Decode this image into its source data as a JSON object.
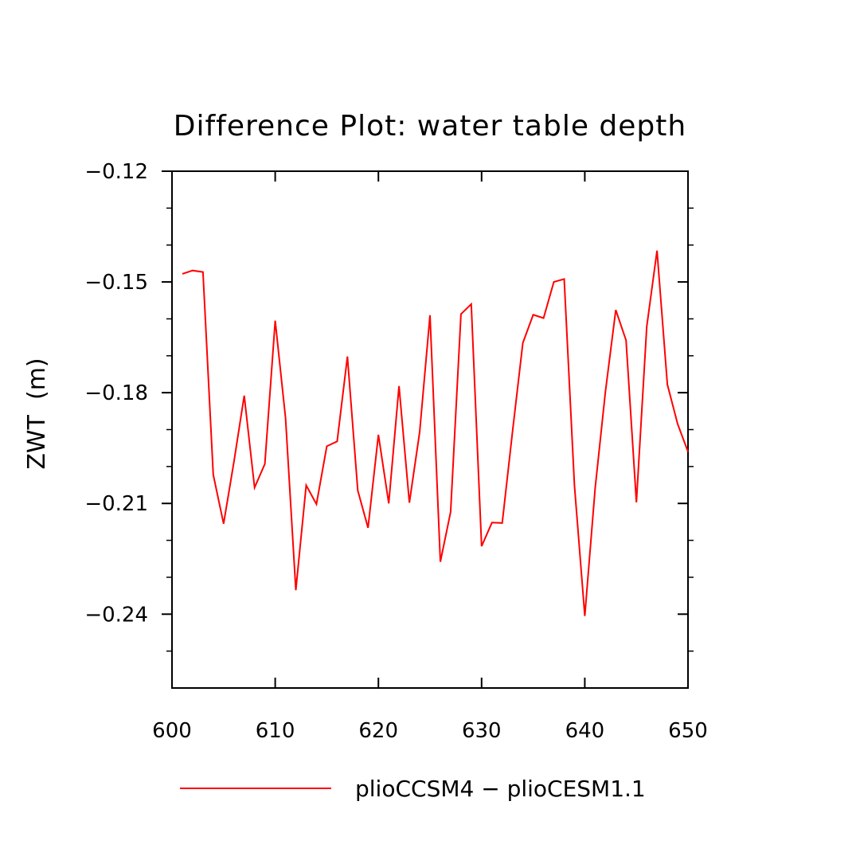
{
  "chart_data": {
    "type": "line",
    "title": "Difference Plot: water table depth",
    "xlabel": "",
    "ylabel": "ZWT  (m)",
    "xlim": [
      600,
      650
    ],
    "ylim": [
      -0.26,
      -0.12
    ],
    "xticks": [
      600,
      610,
      620,
      630,
      640,
      650
    ],
    "xtick_labels": [
      "600",
      "610",
      "620",
      "630",
      "640",
      "650"
    ],
    "yticks": [
      -0.12,
      -0.15,
      -0.18,
      -0.21,
      -0.24
    ],
    "ytick_labels": [
      "−0.12",
      "−0.15",
      "−0.18",
      "−0.21",
      "−0.24"
    ],
    "grid": false,
    "legend_position": "bottom",
    "series": [
      {
        "name": "plioCCSM4 − plioCESM1.1",
        "color": "#ff0000",
        "x": [
          601,
          602,
          603,
          604,
          605,
          606,
          607,
          608,
          609,
          610,
          611,
          612,
          613,
          614,
          615,
          616,
          617,
          618,
          619,
          620,
          621,
          622,
          623,
          624,
          625,
          626,
          627,
          628,
          629,
          630,
          631,
          632,
          633,
          634,
          635,
          636,
          637,
          638,
          639,
          640,
          641,
          642,
          643,
          644,
          645,
          646,
          647,
          648,
          649,
          650
        ],
        "y": [
          -0.1478,
          -0.1469,
          -0.1473,
          -0.2022,
          -0.2155,
          -0.1987,
          -0.1808,
          -0.2057,
          -0.1993,
          -0.1605,
          -0.1869,
          -0.2335,
          -0.2051,
          -0.2102,
          -0.1945,
          -0.1932,
          -0.1702,
          -0.2065,
          -0.2166,
          -0.1914,
          -0.21,
          -0.1782,
          -0.2098,
          -0.1907,
          -0.159,
          -0.2258,
          -0.2123,
          -0.1587,
          -0.156,
          -0.2216,
          -0.2152,
          -0.2153,
          -0.1904,
          -0.1665,
          -0.1589,
          -0.1598,
          -0.15,
          -0.1492,
          -0.2051,
          -0.2405,
          -0.2059,
          -0.1797,
          -0.1576,
          -0.1658,
          -0.2097,
          -0.1621,
          -0.1415,
          -0.1778,
          -0.1885,
          -0.196
        ]
      }
    ]
  }
}
